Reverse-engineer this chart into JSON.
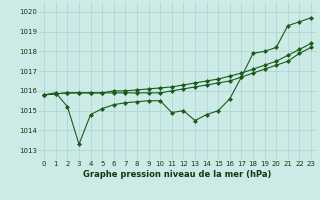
{
  "xlabel": "Graphe pression niveau de la mer (hPa)",
  "background_color": "#cceae6",
  "grid_color": "#aad4ce",
  "line_color": "#1a5c1a",
  "ylim": [
    1012.5,
    1020.5
  ],
  "xlim": [
    -0.5,
    23.5
  ],
  "yticks": [
    1013,
    1014,
    1015,
    1016,
    1017,
    1018,
    1019,
    1020
  ],
  "xticks": [
    0,
    1,
    2,
    3,
    4,
    5,
    6,
    7,
    8,
    9,
    10,
    11,
    12,
    13,
    14,
    15,
    16,
    17,
    18,
    19,
    20,
    21,
    22,
    23
  ],
  "series": [
    [
      1015.8,
      1015.9,
      1015.2,
      1013.3,
      1014.8,
      1015.1,
      1015.3,
      1015.4,
      1015.45,
      1015.5,
      1015.5,
      1014.9,
      1015.0,
      1014.5,
      1014.8,
      1015.0,
      1015.6,
      1016.7,
      1017.9,
      1018.0,
      1018.2,
      1019.3,
      1019.5,
      1019.7
    ],
    [
      1015.8,
      1015.85,
      1015.9,
      1015.9,
      1015.9,
      1015.9,
      1015.9,
      1015.9,
      1015.9,
      1015.9,
      1015.9,
      1016.0,
      1016.1,
      1016.2,
      1016.3,
      1016.4,
      1016.5,
      1016.7,
      1016.9,
      1017.1,
      1017.3,
      1017.5,
      1017.9,
      1018.2
    ],
    [
      1015.8,
      1015.85,
      1015.9,
      1015.9,
      1015.9,
      1015.9,
      1016.0,
      1016.0,
      1016.05,
      1016.1,
      1016.15,
      1016.2,
      1016.3,
      1016.4,
      1016.5,
      1016.6,
      1016.75,
      1016.9,
      1017.1,
      1017.3,
      1017.5,
      1017.8,
      1018.1,
      1018.4
    ]
  ]
}
